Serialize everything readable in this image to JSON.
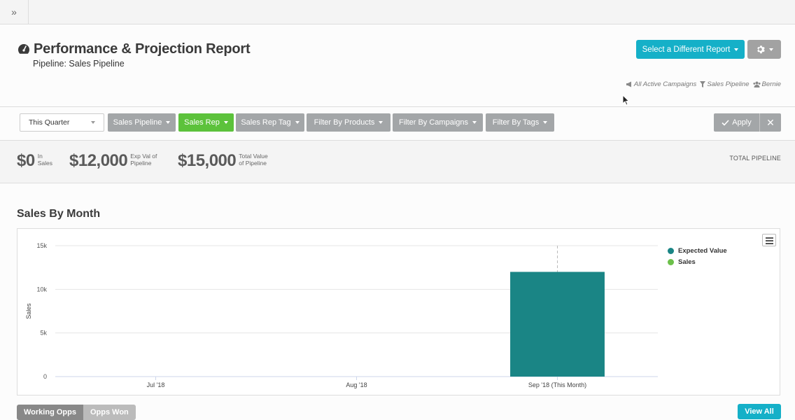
{
  "topbar": {
    "expand_label": "»"
  },
  "header": {
    "title": "Performance & Projection Report",
    "subtitle": "Pipeline: Sales Pipeline",
    "report_button": "Select a Different Report",
    "meta": {
      "campaigns": "All Active Campaigns",
      "pipeline": "Sales Pipeline",
      "user": "Bernie"
    }
  },
  "filters": {
    "period": "This Quarter",
    "buttons": [
      "Sales Pipeline",
      "Sales Rep",
      "Sales Rep Tag",
      "Filter By Products",
      "Filter By Campaigns",
      "Filter By Tags"
    ],
    "apply_label": "Apply",
    "clear_label": "✕"
  },
  "stats": [
    {
      "value": "$0",
      "label1": "In",
      "label2": "Sales"
    },
    {
      "value": "$12,000",
      "label1": "Exp Val of",
      "label2": "Pipeline"
    },
    {
      "value": "$15,000",
      "label1": "Total Value",
      "label2": "of Pipeline"
    }
  ],
  "total_pipeline_label": "TOTAL PIPELINE",
  "section_title": "Sales By Month",
  "colors": {
    "accent": "#15b0c8",
    "green": "#5cc23b",
    "expected": "#1a8585",
    "sales": "#6cc04a"
  },
  "chart_data": {
    "type": "bar",
    "categories": [
      "Jul '18",
      "Aug '18",
      "Sep '18 (This Month)"
    ],
    "series": [
      {
        "name": "Expected Value",
        "values": [
          0,
          0,
          12000
        ],
        "color": "#1a8585"
      },
      {
        "name": "Sales",
        "values": [
          0,
          0,
          0
        ],
        "color": "#6cc04a"
      }
    ],
    "ylabel": "Sales",
    "ylim": [
      0,
      15000
    ],
    "yticks": [
      0,
      5000,
      10000,
      15000
    ],
    "ytick_labels": [
      "0",
      "5k",
      "10k",
      "15k"
    ],
    "legend": "top-right",
    "grid": true
  },
  "bottom": {
    "tabs": [
      "Working Opps",
      "Opps Won"
    ],
    "view_all": "View All"
  }
}
